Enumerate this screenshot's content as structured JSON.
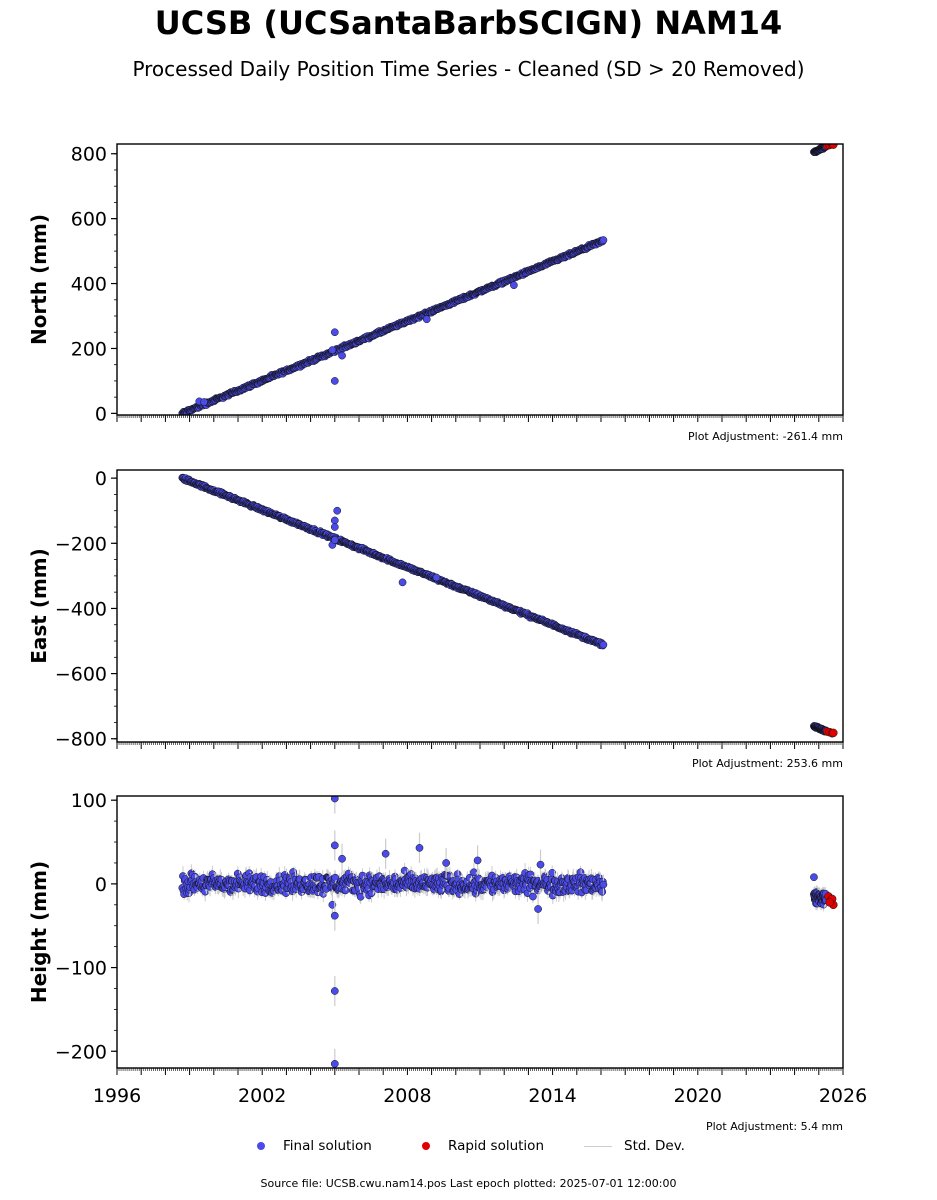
{
  "title": "UCSB (UCSantaBarbSCIGN) NAM14",
  "subtitle": "Processed Daily Position Time Series - Cleaned (SD > 20 Removed)",
  "footer": "Source file: UCSB.cwu.nam14.pos  Last epoch plotted: 2025-07-01 12:00:00",
  "legend": [
    {
      "label": "Final solution",
      "color": "#4b4bea"
    },
    {
      "label": "Rapid solution",
      "color": "#e00000"
    },
    {
      "label": "Std. Dev.",
      "color": "#cccccc"
    }
  ],
  "colors": {
    "final": "#4b4bea",
    "rapid": "#e00000",
    "edge": "#111111",
    "stddev": "#cccccc"
  },
  "chart_data": [
    {
      "type": "scatter",
      "ylabel": "North (mm)",
      "adjustment": "Plot Adjustment: -261.4 mm",
      "xlim": [
        1996,
        2026
      ],
      "ylim": [
        -5,
        830
      ],
      "yticks": [
        0,
        200,
        400,
        600,
        800
      ],
      "xticks": [
        1996,
        2002,
        2008,
        2014,
        2020,
        2026
      ],
      "show_xtick_labels": false,
      "series": [
        {
          "kind": "final",
          "trend": [
            [
              1998.7,
              0
            ],
            [
              2016.1,
              532
            ]
          ],
          "scatter": 3,
          "outliers": [
            [
              2005.0,
              250
            ],
            [
              2005.0,
              100
            ],
            [
              2004.9,
              195
            ],
            [
              2005.3,
              178
            ],
            [
              2012.4,
              395
            ],
            [
              1999.4,
              37
            ],
            [
              1999.6,
              35
            ],
            [
              2008.8,
              290
            ]
          ],
          "segment2": [
            [
              2024.8,
              805
            ],
            [
              2025.3,
              822
            ]
          ]
        },
        {
          "kind": "rapid",
          "points": [
            [
              2025.35,
              825
            ],
            [
              2025.45,
              827
            ],
            [
              2025.55,
              830
            ],
            [
              2025.6,
              828
            ]
          ]
        }
      ]
    },
    {
      "type": "scatter",
      "ylabel": "East (mm)",
      "adjustment": "Plot Adjustment: 253.6 mm",
      "xlim": [
        1996,
        2026
      ],
      "ylim": [
        -810,
        25
      ],
      "yticks": [
        0,
        -200,
        -400,
        -600,
        -800
      ],
      "xticks": [
        1996,
        2002,
        2008,
        2014,
        2020,
        2026
      ],
      "show_xtick_labels": false,
      "series": [
        {
          "kind": "final",
          "trend": [
            [
              1998.7,
              0
            ],
            [
              2016.1,
              -512
            ]
          ],
          "scatter": 3,
          "outliers": [
            [
              2005.1,
              -100
            ],
            [
              2005.0,
              -130
            ],
            [
              2005.0,
              -150
            ],
            [
              2004.9,
              -205
            ],
            [
              2005.0,
              -190
            ],
            [
              2007.8,
              -320
            ],
            [
              2009.2,
              -305
            ]
          ],
          "segment2": [
            [
              2024.8,
              -762
            ],
            [
              2025.3,
              -777
            ]
          ]
        },
        {
          "kind": "rapid",
          "points": [
            [
              2025.35,
              -778
            ],
            [
              2025.45,
              -780
            ],
            [
              2025.55,
              -783
            ],
            [
              2025.6,
              -782
            ]
          ]
        }
      ]
    },
    {
      "type": "scatter",
      "ylabel": "Height (mm)",
      "adjustment": "Plot Adjustment: 5.4 mm",
      "xlim": [
        1996,
        2026
      ],
      "ylim": [
        -220,
        105
      ],
      "yticks": [
        100,
        0,
        -100,
        -200
      ],
      "xticks": [
        1996,
        2002,
        2008,
        2014,
        2020,
        2026
      ],
      "show_xtick_labels": true,
      "series": [
        {
          "kind": "final",
          "trend": [
            [
              1998.7,
              0
            ],
            [
              2016.1,
              0
            ]
          ],
          "scatter": 8,
          "outliers": [
            [
              2005.0,
              102
            ],
            [
              2005.0,
              46
            ],
            [
              2005.3,
              30
            ],
            [
              2004.9,
              -25
            ],
            [
              2005.0,
              -38
            ],
            [
              2005.0,
              -128
            ],
            [
              2005.0,
              -215
            ],
            [
              2007.1,
              36
            ],
            [
              2008.5,
              43
            ],
            [
              2010.9,
              28
            ],
            [
              2013.5,
              23
            ],
            [
              2009.6,
              25
            ],
            [
              2013.4,
              -30
            ]
          ],
          "segment2": [
            [
              2024.8,
              -15
            ],
            [
              2025.3,
              -18
            ]
          ],
          "segment2_extra": [
            [
              2024.8,
              8
            ]
          ]
        },
        {
          "kind": "rapid",
          "points": [
            [
              2025.4,
              -15
            ],
            [
              2025.5,
              -20
            ],
            [
              2025.6,
              -25
            ],
            [
              2025.55,
              -18
            ],
            [
              2025.45,
              -22
            ]
          ]
        }
      ]
    }
  ]
}
